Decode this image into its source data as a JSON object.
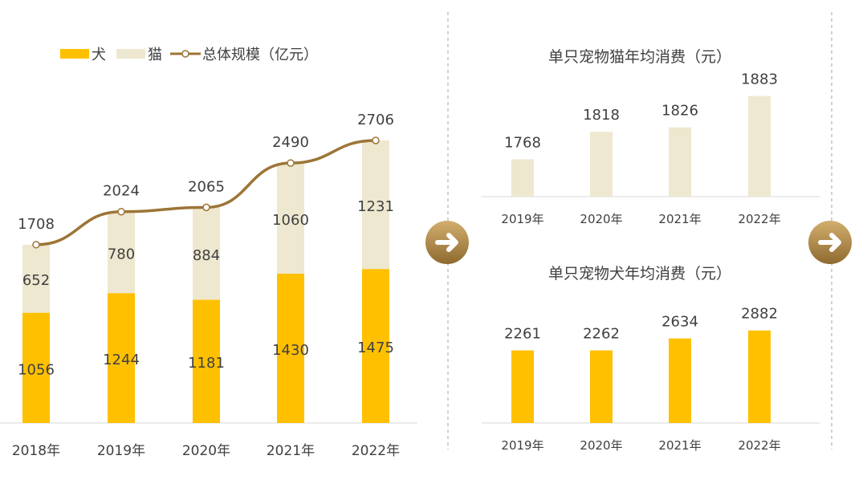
{
  "colors": {
    "dog": "#FFC000",
    "cat": "#EEE8D0",
    "line": "#9C7537",
    "arrow": "#B08A4A",
    "axis": "#D9D9D9",
    "divider": "#A6A6A6"
  },
  "chart_data": [
    {
      "type": "bar",
      "stacked": true,
      "categories": [
        "2018年",
        "2019年",
        "2020年",
        "2021年",
        "2022年"
      ],
      "series": [
        {
          "name": "犬",
          "values": [
            1056,
            1244,
            1181,
            1430,
            1475
          ]
        },
        {
          "name": "猫",
          "values": [
            652,
            780,
            884,
            1060,
            1231
          ]
        }
      ],
      "line": {
        "name": "总体规模（亿元）",
        "values": [
          1708,
          2024,
          2065,
          2490,
          2706
        ]
      },
      "ylim": [
        0,
        2706
      ],
      "legend": "top-left",
      "grid": false
    },
    {
      "type": "bar",
      "title": "单只宠物猫年均消费（元）",
      "categories": [
        "2019年",
        "2020年",
        "2021年",
        "2022年"
      ],
      "values": [
        1768,
        1818,
        1826,
        1883
      ],
      "ylim": [
        1700,
        1900
      ],
      "grid": false
    },
    {
      "type": "bar",
      "title": "单只宠物犬年均消费（元）",
      "categories": [
        "2019年",
        "2020年",
        "2021年",
        "2022年"
      ],
      "values": [
        2261,
        2262,
        2634,
        2882
      ],
      "ylim": [
        0,
        3250
      ],
      "grid": false
    }
  ],
  "icons": [
    "arrow-right-icon",
    "arrow-right-icon"
  ]
}
